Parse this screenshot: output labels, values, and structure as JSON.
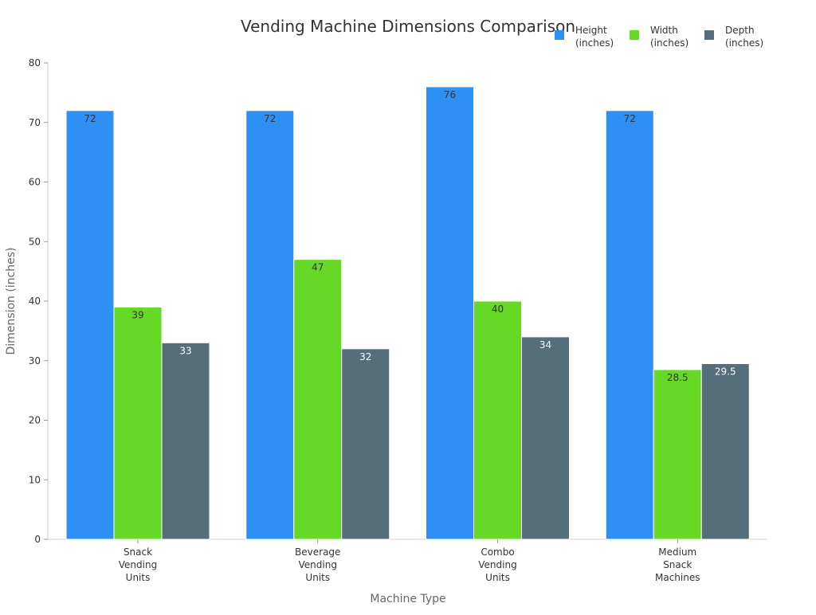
{
  "chart_data": {
    "type": "bar",
    "title": "Vending Machine Dimensions Comparison",
    "xlabel": "Machine Type",
    "ylabel": "Dimension (inches)",
    "ylim": [
      0,
      80
    ],
    "yticks": [
      0,
      10,
      20,
      30,
      40,
      50,
      60,
      70,
      80
    ],
    "grid": false,
    "legend_position": "top-right",
    "categories": [
      [
        "Snack",
        "Vending",
        "Units"
      ],
      [
        "Beverage",
        "Vending",
        "Units"
      ],
      [
        "Combo",
        "Vending",
        "Units"
      ],
      [
        "Medium",
        "Snack",
        "Machines"
      ]
    ],
    "series": [
      {
        "name": [
          "Height",
          "(inches)"
        ],
        "values": [
          72,
          72,
          76,
          72
        ],
        "color": "#2e90f5",
        "label_color": "#333333"
      },
      {
        "name": [
          "Width",
          "(inches)"
        ],
        "values": [
          39,
          47,
          40,
          28.5
        ],
        "color": "#66d926",
        "label_color": "#333333"
      },
      {
        "name": [
          "Depth",
          "(inches)"
        ],
        "values": [
          33,
          32,
          34,
          29.5
        ],
        "color": "#546e7a",
        "label_color": "#ffffff"
      }
    ]
  }
}
